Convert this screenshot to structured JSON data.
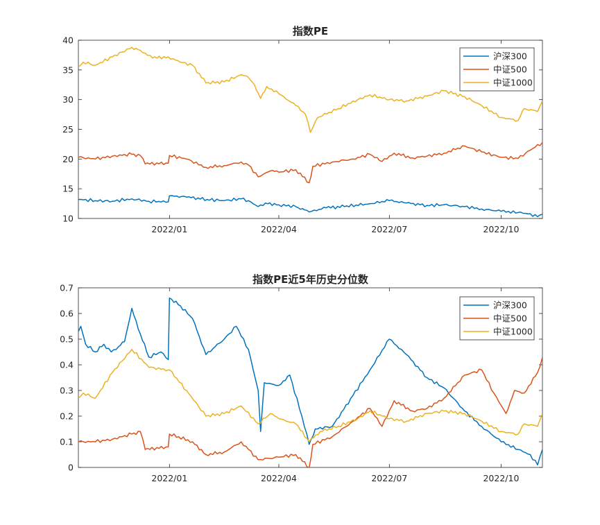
{
  "chart_data": [
    {
      "type": "line",
      "title": "指数PE",
      "xlabel": "",
      "ylabel": "",
      "xlim": [
        "2021-10-18",
        "2022-11-04"
      ],
      "ylim": [
        10,
        40
      ],
      "x_ticks": [
        "2022/01",
        "2022/04",
        "2022/07",
        "2022/10"
      ],
      "y_ticks": [
        "10",
        "15",
        "20",
        "25",
        "30",
        "35",
        "40"
      ],
      "grid": false,
      "legend": "top-right",
      "series": [
        {
          "name": "沪深300",
          "color": "#0072BD",
          "points": [
            [
              "2021-10-18",
              13.2
            ],
            [
              "2021-11-01",
              13.0
            ],
            [
              "2021-11-15",
              12.9
            ],
            [
              "2021-12-01",
              13.3
            ],
            [
              "2021-12-15",
              12.9
            ],
            [
              "2021-12-31",
              12.8
            ],
            [
              "2022-01-01",
              13.8
            ],
            [
              "2022-01-15",
              13.6
            ],
            [
              "2022-02-01",
              13.2
            ],
            [
              "2022-02-15",
              13.0
            ],
            [
              "2022-03-01",
              13.3
            ],
            [
              "2022-03-07",
              13.0
            ],
            [
              "2022-03-15",
              12.0
            ],
            [
              "2022-03-21",
              12.6
            ],
            [
              "2022-04-01",
              12.3
            ],
            [
              "2022-04-15",
              12.0
            ],
            [
              "2022-04-26",
              11.1
            ],
            [
              "2022-05-10",
              11.8
            ],
            [
              "2022-05-25",
              12.0
            ],
            [
              "2022-06-15",
              12.5
            ],
            [
              "2022-07-01",
              13.0
            ],
            [
              "2022-07-15",
              12.6
            ],
            [
              "2022-08-01",
              12.2
            ],
            [
              "2022-08-15",
              12.3
            ],
            [
              "2022-09-01",
              12.0
            ],
            [
              "2022-09-15",
              11.6
            ],
            [
              "2022-10-01",
              11.2
            ],
            [
              "2022-10-15",
              11.0
            ],
            [
              "2022-10-25",
              10.8
            ],
            [
              "2022-10-31",
              10.3
            ],
            [
              "2022-11-04",
              10.7
            ]
          ]
        },
        {
          "name": "中证500",
          "color": "#D95319",
          "points": [
            [
              "2021-10-18",
              20.3
            ],
            [
              "2021-11-01",
              20.0
            ],
            [
              "2021-11-15",
              20.5
            ],
            [
              "2021-12-01",
              20.8
            ],
            [
              "2021-12-08",
              20.6
            ],
            [
              "2021-12-12",
              19.2
            ],
            [
              "2021-12-31",
              19.3
            ],
            [
              "2022-01-01",
              20.6
            ],
            [
              "2022-01-15",
              20.0
            ],
            [
              "2022-01-31",
              18.6
            ],
            [
              "2022-02-15",
              18.9
            ],
            [
              "2022-03-01",
              19.5
            ],
            [
              "2022-03-07",
              19.0
            ],
            [
              "2022-03-15",
              17.0
            ],
            [
              "2022-03-25",
              18.0
            ],
            [
              "2022-04-01",
              17.8
            ],
            [
              "2022-04-15",
              18.2
            ],
            [
              "2022-04-26",
              16.0
            ],
            [
              "2022-04-29",
              18.8
            ],
            [
              "2022-05-15",
              19.5
            ],
            [
              "2022-06-01",
              20.0
            ],
            [
              "2022-06-15",
              20.8
            ],
            [
              "2022-06-25",
              19.6
            ],
            [
              "2022-07-05",
              21.0
            ],
            [
              "2022-07-20",
              20.2
            ],
            [
              "2022-08-01",
              20.5
            ],
            [
              "2022-08-15",
              21.0
            ],
            [
              "2022-09-01",
              22.2
            ],
            [
              "2022-09-15",
              21.2
            ],
            [
              "2022-10-01",
              20.3
            ],
            [
              "2022-10-15",
              20.1
            ],
            [
              "2022-10-25",
              21.5
            ],
            [
              "2022-11-04",
              22.8
            ]
          ]
        },
        {
          "name": "中证1000",
          "color": "#EDB120",
          "points": [
            [
              "2021-10-18",
              35.5
            ],
            [
              "2021-10-22",
              36.3
            ],
            [
              "2021-11-01",
              35.8
            ],
            [
              "2021-11-15",
              37.2
            ],
            [
              "2021-12-01",
              38.8
            ],
            [
              "2021-12-08",
              38.3
            ],
            [
              "2021-12-18",
              37.0
            ],
            [
              "2021-12-31",
              37.2
            ],
            [
              "2022-01-10",
              36.3
            ],
            [
              "2022-01-20",
              35.8
            ],
            [
              "2022-01-31",
              32.8
            ],
            [
              "2022-02-15",
              33.0
            ],
            [
              "2022-03-01",
              34.2
            ],
            [
              "2022-03-05",
              34.0
            ],
            [
              "2022-03-12",
              32.5
            ],
            [
              "2022-03-17",
              30.2
            ],
            [
              "2022-03-22",
              32.2
            ],
            [
              "2022-04-01",
              31.0
            ],
            [
              "2022-04-15",
              29.0
            ],
            [
              "2022-04-23",
              27.5
            ],
            [
              "2022-04-27",
              24.5
            ],
            [
              "2022-05-03",
              27.0
            ],
            [
              "2022-05-20",
              28.5
            ],
            [
              "2022-06-05",
              30.0
            ],
            [
              "2022-06-15",
              30.8
            ],
            [
              "2022-07-01",
              30.0
            ],
            [
              "2022-07-15",
              29.8
            ],
            [
              "2022-08-01",
              30.6
            ],
            [
              "2022-08-15",
              31.5
            ],
            [
              "2022-09-01",
              30.5
            ],
            [
              "2022-09-15",
              29.0
            ],
            [
              "2022-10-01",
              27.0
            ],
            [
              "2022-10-15",
              26.5
            ],
            [
              "2022-10-20",
              28.5
            ],
            [
              "2022-10-31",
              28.0
            ],
            [
              "2022-11-04",
              29.8
            ]
          ]
        }
      ]
    },
    {
      "type": "line",
      "title": "指数PE近5年历史分位数",
      "xlabel": "",
      "ylabel": "",
      "xlim": [
        "2021-10-18",
        "2022-11-04"
      ],
      "ylim": [
        0,
        0.7
      ],
      "x_ticks": [
        "2022/01",
        "2022/04",
        "2022/07",
        "2022/10"
      ],
      "y_ticks": [
        "0",
        "0.1",
        "0.2",
        "0.3",
        "0.4",
        "0.5",
        "0.6",
        "0.7"
      ],
      "grid": false,
      "legend": "top-right",
      "series": [
        {
          "name": "沪深300",
          "color": "#0072BD",
          "points": [
            [
              "2021-10-18",
              0.53
            ],
            [
              "2021-10-20",
              0.55
            ],
            [
              "2021-10-24",
              0.48
            ],
            [
              "2021-11-01",
              0.45
            ],
            [
              "2021-11-08",
              0.48
            ],
            [
              "2021-11-14",
              0.45
            ],
            [
              "2021-11-20",
              0.47
            ],
            [
              "2021-11-25",
              0.49
            ],
            [
              "2021-12-01",
              0.62
            ],
            [
              "2021-12-08",
              0.52
            ],
            [
              "2021-12-15",
              0.43
            ],
            [
              "2021-12-25",
              0.45
            ],
            [
              "2021-12-31",
              0.42
            ],
            [
              "2022-01-01",
              0.66
            ],
            [
              "2022-01-10",
              0.63
            ],
            [
              "2022-01-20",
              0.58
            ],
            [
              "2022-01-31",
              0.44
            ],
            [
              "2022-02-15",
              0.5
            ],
            [
              "2022-02-25",
              0.55
            ],
            [
              "2022-03-07",
              0.46
            ],
            [
              "2022-03-15",
              0.3
            ],
            [
              "2022-03-17",
              0.14
            ],
            [
              "2022-03-20",
              0.33
            ],
            [
              "2022-04-01",
              0.32
            ],
            [
              "2022-04-10",
              0.36
            ],
            [
              "2022-04-20",
              0.2
            ],
            [
              "2022-04-26",
              0.09
            ],
            [
              "2022-05-01",
              0.15
            ],
            [
              "2022-05-15",
              0.16
            ],
            [
              "2022-06-01",
              0.28
            ],
            [
              "2022-06-15",
              0.38
            ],
            [
              "2022-07-01",
              0.5
            ],
            [
              "2022-07-15",
              0.44
            ],
            [
              "2022-08-01",
              0.35
            ],
            [
              "2022-08-15",
              0.31
            ],
            [
              "2022-09-01",
              0.22
            ],
            [
              "2022-09-15",
              0.16
            ],
            [
              "2022-10-01",
              0.1
            ],
            [
              "2022-10-15",
              0.07
            ],
            [
              "2022-10-25",
              0.05
            ],
            [
              "2022-10-31",
              0.01
            ],
            [
              "2022-11-04",
              0.07
            ]
          ]
        },
        {
          "name": "中证500",
          "color": "#D95319",
          "points": [
            [
              "2021-10-18",
              0.1
            ],
            [
              "2021-11-01",
              0.1
            ],
            [
              "2021-11-15",
              0.11
            ],
            [
              "2021-12-01",
              0.13
            ],
            [
              "2021-12-08",
              0.14
            ],
            [
              "2021-12-12",
              0.07
            ],
            [
              "2021-12-31",
              0.08
            ],
            [
              "2022-01-01",
              0.13
            ],
            [
              "2022-01-20",
              0.1
            ],
            [
              "2022-01-31",
              0.05
            ],
            [
              "2022-02-15",
              0.06
            ],
            [
              "2022-03-01",
              0.1
            ],
            [
              "2022-03-07",
              0.07
            ],
            [
              "2022-03-15",
              0.03
            ],
            [
              "2022-04-01",
              0.04
            ],
            [
              "2022-04-15",
              0.05
            ],
            [
              "2022-04-26",
              0.0
            ],
            [
              "2022-04-29",
              0.09
            ],
            [
              "2022-05-15",
              0.12
            ],
            [
              "2022-06-01",
              0.18
            ],
            [
              "2022-06-15",
              0.23
            ],
            [
              "2022-06-25",
              0.16
            ],
            [
              "2022-07-05",
              0.26
            ],
            [
              "2022-07-20",
              0.22
            ],
            [
              "2022-08-01",
              0.23
            ],
            [
              "2022-08-15",
              0.27
            ],
            [
              "2022-09-01",
              0.36
            ],
            [
              "2022-09-15",
              0.38
            ],
            [
              "2022-09-25",
              0.29
            ],
            [
              "2022-10-05",
              0.21
            ],
            [
              "2022-10-12",
              0.3
            ],
            [
              "2022-10-20",
              0.29
            ],
            [
              "2022-10-31",
              0.37
            ],
            [
              "2022-11-04",
              0.43
            ]
          ]
        },
        {
          "name": "中证1000",
          "color": "#EDB120",
          "points": [
            [
              "2021-10-18",
              0.27
            ],
            [
              "2021-10-22",
              0.29
            ],
            [
              "2021-11-01",
              0.27
            ],
            [
              "2021-11-15",
              0.37
            ],
            [
              "2021-12-01",
              0.46
            ],
            [
              "2021-12-15",
              0.39
            ],
            [
              "2021-12-31",
              0.38
            ],
            [
              "2022-01-01",
              0.38
            ],
            [
              "2022-01-15",
              0.3
            ],
            [
              "2022-01-31",
              0.2
            ],
            [
              "2022-02-15",
              0.21
            ],
            [
              "2022-03-01",
              0.24
            ],
            [
              "2022-03-15",
              0.17
            ],
            [
              "2022-03-25",
              0.21
            ],
            [
              "2022-04-01",
              0.19
            ],
            [
              "2022-04-15",
              0.17
            ],
            [
              "2022-04-26",
              0.1
            ],
            [
              "2022-05-05",
              0.14
            ],
            [
              "2022-05-20",
              0.16
            ],
            [
              "2022-06-05",
              0.19
            ],
            [
              "2022-06-15",
              0.22
            ],
            [
              "2022-07-01",
              0.19
            ],
            [
              "2022-07-15",
              0.18
            ],
            [
              "2022-08-01",
              0.21
            ],
            [
              "2022-08-15",
              0.22
            ],
            [
              "2022-09-01",
              0.21
            ],
            [
              "2022-09-15",
              0.18
            ],
            [
              "2022-10-01",
              0.14
            ],
            [
              "2022-10-15",
              0.13
            ],
            [
              "2022-10-20",
              0.17
            ],
            [
              "2022-10-31",
              0.16
            ],
            [
              "2022-11-04",
              0.21
            ]
          ]
        }
      ]
    }
  ]
}
